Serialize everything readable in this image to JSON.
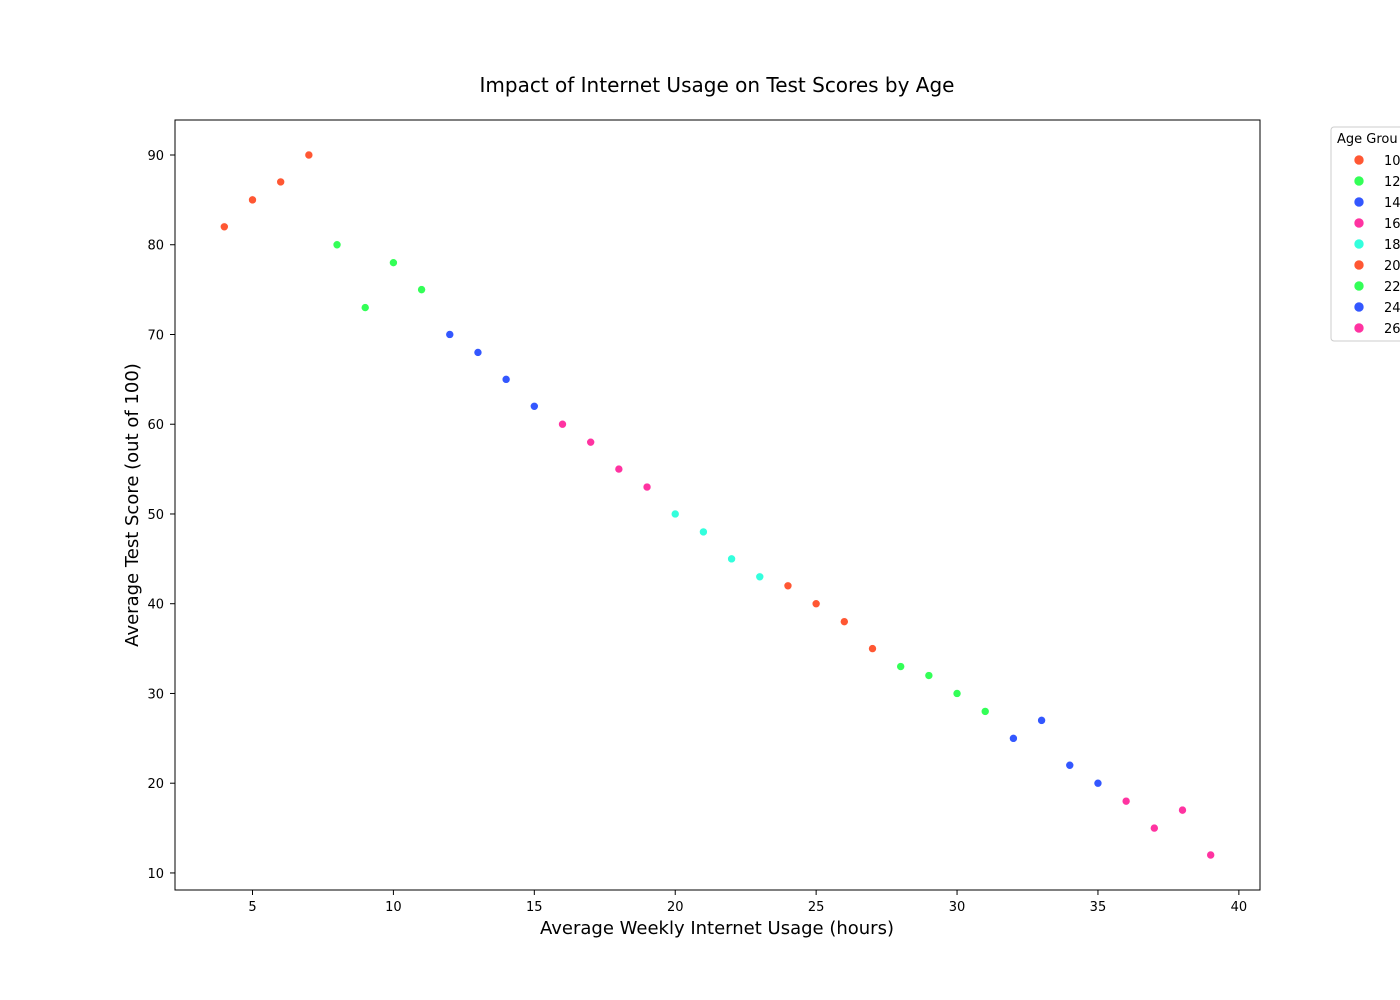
{
  "chart_data": {
    "type": "scatter",
    "title": "Impact of Internet Usage on Test Scores by Age",
    "xlabel": "Average Weekly Internet Usage (hours)",
    "ylabel": "Average Test Score (out of 100)",
    "xlim": [
      2.25,
      40.75
    ],
    "ylim": [
      8.1,
      93.9
    ],
    "xticks": [
      5,
      10,
      15,
      20,
      25,
      30,
      35,
      40
    ],
    "yticks": [
      10,
      20,
      30,
      40,
      50,
      60,
      70,
      80,
      90
    ],
    "grid": false,
    "legend": {
      "title": "Age Grou",
      "placement": "outside-right"
    },
    "series": [
      {
        "name": "10",
        "color": "#ff5733",
        "x": [
          4,
          5,
          6,
          7
        ],
        "y": [
          82,
          85,
          87,
          90
        ]
      },
      {
        "name": "12",
        "color": "#33ff57",
        "x": [
          8,
          9,
          10,
          11
        ],
        "y": [
          80,
          73,
          78,
          75
        ]
      },
      {
        "name": "14",
        "color": "#3357ff",
        "x": [
          12,
          13,
          14,
          15
        ],
        "y": [
          70,
          68,
          65,
          62
        ]
      },
      {
        "name": "16",
        "color": "#ff33a1",
        "x": [
          16,
          17,
          18,
          19
        ],
        "y": [
          60,
          58,
          55,
          53
        ]
      },
      {
        "name": "18",
        "color": "#33ffdd",
        "x": [
          20,
          21,
          22,
          23
        ],
        "y": [
          50,
          48,
          45,
          43
        ]
      },
      {
        "name": "20",
        "color": "#ff5733",
        "x": [
          24,
          25,
          26,
          27
        ],
        "y": [
          42,
          40,
          38,
          35
        ]
      },
      {
        "name": "22",
        "color": "#33ff57",
        "x": [
          28,
          29,
          30,
          31
        ],
        "y": [
          33,
          32,
          30,
          28
        ]
      },
      {
        "name": "24",
        "color": "#3357ff",
        "x": [
          32,
          33,
          34,
          35
        ],
        "y": [
          25,
          27,
          22,
          20
        ]
      },
      {
        "name": "26",
        "color": "#ff33a1",
        "x": [
          36,
          37,
          38,
          39
        ],
        "y": [
          18,
          15,
          17,
          12
        ]
      }
    ]
  }
}
